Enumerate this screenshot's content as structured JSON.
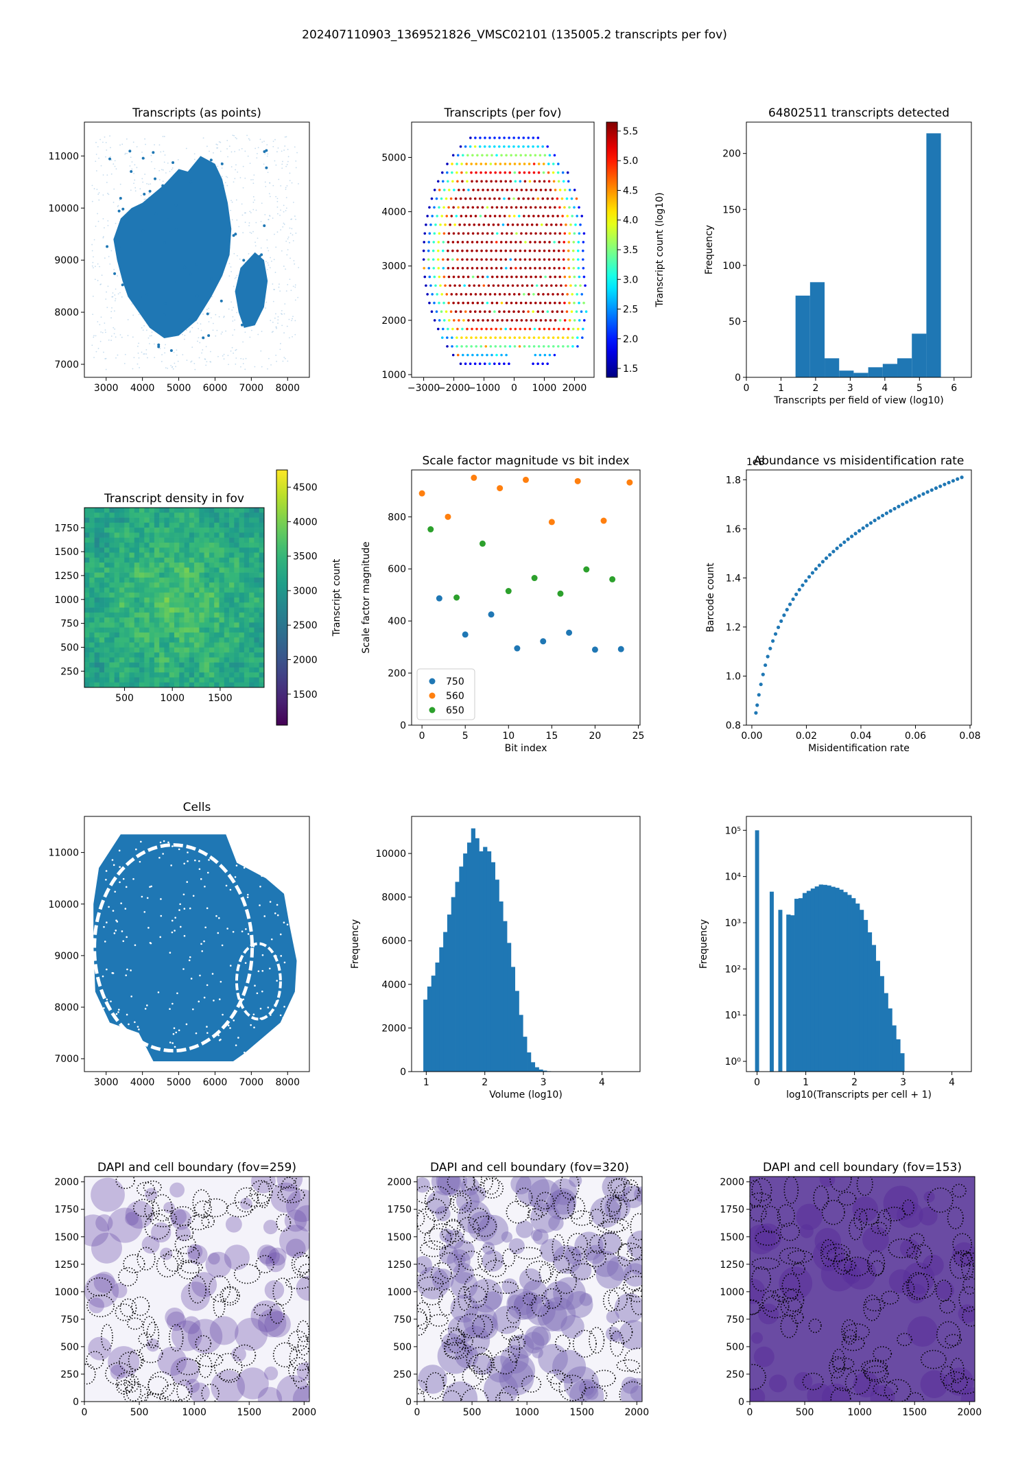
{
  "suptitle": "202407110903_1369521826_VMSC02101 (135005.2 transcripts per fov)",
  "colors": {
    "blue": "#1f77b4",
    "orange": "#ff7f0e",
    "green": "#2ca02c",
    "hist": "#1f77b4"
  },
  "chart_data": [
    {
      "type": "scatter",
      "title": "Transcripts (as points)",
      "xlabel": "",
      "ylabel": "",
      "xlim": [
        2400,
        8600
      ],
      "ylim": [
        6750,
        11650
      ],
      "xticks": [
        3000,
        4000,
        5000,
        6000,
        7000,
        8000
      ],
      "yticks": [
        7000,
        8000,
        9000,
        10000,
        11000
      ],
      "note_shapes": "dense central tissue blob with smaller right lobe; sparse halo"
    },
    {
      "type": "scatter",
      "title": "Transcripts (per fov)",
      "xlabel": "",
      "ylabel": "",
      "xlim": [
        -3400,
        2650
      ],
      "ylim": [
        950,
        5650
      ],
      "xticks": [
        -3000,
        -2000,
        -1000,
        0,
        1000,
        2000
      ],
      "xtick_labels": [
        "−3000",
        "−2000",
        "−1000",
        "0",
        "1000",
        "2000"
      ],
      "yticks": [
        1000,
        2000,
        3000,
        4000,
        5000
      ],
      "colorbar": {
        "label": "Transcript count (log10)",
        "min": 1.35,
        "max": 5.65,
        "ticks": [
          1.5,
          2.0,
          2.5,
          3.0,
          3.5,
          4.0,
          4.5,
          5.0,
          5.5
        ],
        "tick_labels": [
          "1.5",
          "2.0",
          "2.5",
          "3.0",
          "3.5",
          "4.0",
          "4.5",
          "5.0",
          "5.5"
        ],
        "colormap": "jet"
      }
    },
    {
      "type": "bar",
      "title": "64802511 transcripts detected",
      "xlabel": "Transcripts per field of view (log10)",
      "ylabel": "Frequency",
      "xlim": [
        0,
        6.5
      ],
      "ylim": [
        0,
        228
      ],
      "xticks": [
        0,
        1,
        2,
        3,
        4,
        5,
        6
      ],
      "yticks": [
        0,
        50,
        100,
        150,
        200
      ],
      "bin_edges": [
        1.42,
        1.84,
        2.26,
        2.68,
        3.1,
        3.52,
        3.94,
        4.36,
        4.78,
        5.2,
        5.62
      ],
      "values": [
        73,
        85,
        17,
        6,
        4,
        9,
        12,
        17,
        39,
        218
      ]
    },
    {
      "type": "heatmap",
      "title": "Transcript density in fov",
      "xlabel": "",
      "ylabel": "",
      "xlim": [
        80,
        1960
      ],
      "ylim": [
        80,
        1960
      ],
      "xticks": [
        500,
        1000,
        1500
      ],
      "yticks": [
        250,
        500,
        750,
        1000,
        1250,
        1500,
        1750
      ],
      "colorbar": {
        "label": "Transcript count",
        "min": 1050,
        "max": 4750,
        "ticks": [
          1500,
          2000,
          2500,
          3000,
          3500,
          4000,
          4500
        ],
        "colormap": "viridis"
      }
    },
    {
      "type": "scatter",
      "title": "Scale factor magnitude vs bit index",
      "xlabel": "Bit index",
      "ylabel": "Scale factor magnitude",
      "xlim": [
        -1.2,
        25.2
      ],
      "ylim": [
        0,
        980
      ],
      "xticks": [
        0,
        5,
        10,
        15,
        20,
        25
      ],
      "yticks": [
        0,
        200,
        400,
        600,
        800
      ],
      "legend_position": "lower-left",
      "series": [
        {
          "name": "750",
          "x": [
            2,
            5,
            8,
            11,
            14,
            17,
            20,
            23
          ],
          "y": [
            487,
            348,
            425,
            295,
            322,
            355,
            290,
            292
          ]
        },
        {
          "name": "560",
          "x": [
            0,
            3,
            6,
            9,
            12,
            15,
            18,
            21,
            24
          ],
          "y": [
            890,
            800,
            950,
            910,
            942,
            780,
            937,
            785,
            932
          ]
        },
        {
          "name": "650",
          "x": [
            1,
            4,
            7,
            10,
            13,
            16,
            19,
            22
          ],
          "y": [
            752,
            490,
            697,
            515,
            565,
            505,
            598,
            560
          ]
        }
      ]
    },
    {
      "type": "scatter",
      "title": "Abundance vs misidentification rate",
      "xlabel": "Misidentification rate",
      "ylabel": "Barcode count",
      "offset_label": "1e8",
      "xlim": [
        -0.002,
        0.0805
      ],
      "ylim": [
        0.8,
        1.84
      ],
      "xticks": [
        0.0,
        0.02,
        0.04,
        0.06,
        0.08
      ],
      "xtick_labels": [
        "0.00",
        "0.02",
        "0.04",
        "0.06",
        "0.08"
      ],
      "yticks": [
        0.8,
        1.0,
        1.2,
        1.4,
        1.6,
        1.8
      ],
      "ytick_labels": [
        "0.8",
        "1.0",
        "1.2",
        "1.4",
        "1.6",
        "1.8"
      ],
      "curve": {
        "x_start": 0.0015,
        "x_end": 0.077,
        "y_start": 0.85,
        "y_end": 1.81,
        "points": 60
      }
    },
    {
      "type": "scatter",
      "title": "Cells",
      "xlabel": "",
      "ylabel": "",
      "xlim": [
        2400,
        8600
      ],
      "ylim": [
        6750,
        11700
      ],
      "xticks": [
        3000,
        4000,
        5000,
        6000,
        7000,
        8000
      ],
      "yticks": [
        7000,
        8000,
        9000,
        10000,
        11000
      ]
    },
    {
      "type": "bar",
      "title": "",
      "xlabel": "Volume (log10)",
      "ylabel": "Frequency",
      "xlim": [
        0.75,
        4.65
      ],
      "ylim": [
        0,
        11700
      ],
      "xticks": [
        1,
        2,
        3,
        4
      ],
      "yticks": [
        0,
        2000,
        4000,
        6000,
        8000,
        10000
      ],
      "bin_start": 0.95,
      "bin_width": 0.068,
      "values": [
        3300,
        3900,
        4400,
        5000,
        5700,
        6400,
        7200,
        8000,
        8700,
        9400,
        10000,
        10500,
        11150,
        10700,
        10100,
        10300,
        10100,
        9600,
        8800,
        7800,
        6900,
        5900,
        4800,
        3700,
        2600,
        1600,
        880,
        430,
        200,
        95,
        45,
        20,
        9,
        4,
        2,
        1
      ]
    },
    {
      "type": "bar",
      "title": "",
      "xlabel": "log10(Transcripts per cell + 1)",
      "ylabel": "Frequency",
      "scale": "log",
      "xlim": [
        -0.22,
        4.4
      ],
      "ylim": [
        0.6,
        200000
      ],
      "xticks": [
        0,
        1,
        2,
        3,
        4
      ],
      "yticks": [
        1,
        10,
        100,
        1000,
        10000,
        100000
      ],
      "ytick_labels": [
        "10⁰",
        "10¹",
        "10²",
        "10³",
        "10⁴",
        "10⁵"
      ],
      "bin_width": 0.0835,
      "spikes": [
        {
          "x": 0.0,
          "value": 100000
        },
        {
          "x": 0.301,
          "value": 4700
        },
        {
          "x": 0.477,
          "value": 1900
        }
      ],
      "bin_start": 0.6,
      "values": [
        1500,
        1450,
        3300,
        3400,
        4400,
        4900,
        5500,
        6100,
        6700,
        6600,
        6400,
        6000,
        5700,
        5200,
        4600,
        4000,
        3400,
        2600,
        1900,
        1150,
        620,
        330,
        150,
        70,
        30,
        14,
        6,
        3,
        1.5
      ]
    },
    {
      "type": "heatmap",
      "title": "DAPI and cell boundary (fov=259)",
      "xlabel": "",
      "ylabel": "",
      "xlim": [
        0,
        2048
      ],
      "ylim": [
        0,
        2048
      ],
      "xticks": [
        0,
        500,
        1000,
        1500,
        2000
      ],
      "yticks": [
        0,
        250,
        500,
        750,
        1000,
        1250,
        1500,
        1750,
        2000
      ]
    },
    {
      "type": "heatmap",
      "title": "DAPI and cell boundary (fov=320)",
      "xlabel": "",
      "ylabel": "",
      "xlim": [
        0,
        2048
      ],
      "ylim": [
        0,
        2048
      ],
      "xticks": [
        0,
        500,
        1000,
        1500,
        2000
      ],
      "yticks": [
        0,
        250,
        500,
        750,
        1000,
        1250,
        1500,
        1750,
        2000
      ]
    },
    {
      "type": "heatmap",
      "title": "DAPI and cell boundary (fov=153)",
      "xlabel": "",
      "ylabel": "",
      "xlim": [
        0,
        2048
      ],
      "ylim": [
        0,
        2048
      ],
      "xticks": [
        0,
        500,
        1000,
        1500,
        2000
      ],
      "yticks": [
        0,
        250,
        500,
        750,
        1000,
        1250,
        1500,
        1750,
        2000
      ]
    }
  ]
}
